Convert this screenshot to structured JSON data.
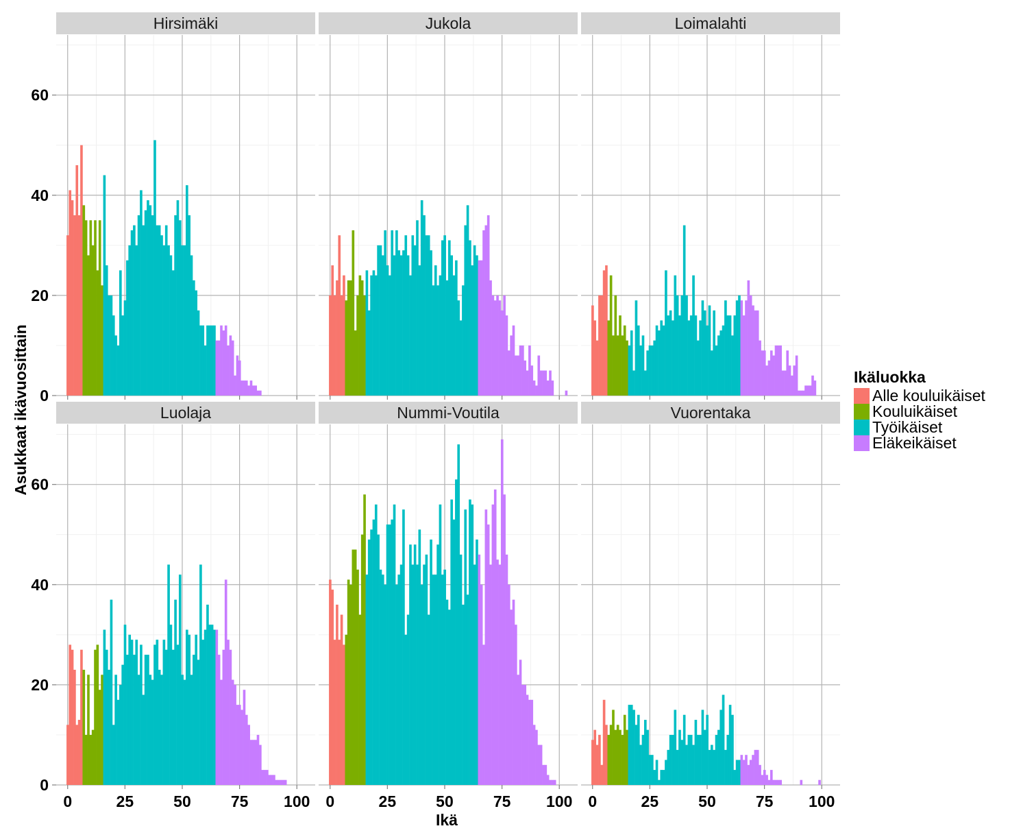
{
  "chart_data": {
    "type": "bar",
    "xlabel": "Ikä",
    "ylabel": "Asukkaat ikävuosittain",
    "xlim": [
      -5,
      108
    ],
    "ylim": [
      0,
      72
    ],
    "x_ticks": [
      0,
      25,
      50,
      75,
      100
    ],
    "y_ticks": [
      0,
      20,
      40,
      60
    ],
    "grid": true,
    "legend": {
      "title": "Ikäluokka",
      "position": "right",
      "entries": [
        {
          "label": "Alle kouluikäiset",
          "color": "#F8766D"
        },
        {
          "label": "Kouluikäiset",
          "color": "#7CAE00"
        },
        {
          "label": "Työikäiset",
          "color": "#00BFC4"
        },
        {
          "label": "Eläkeikäiset",
          "color": "#C77CFF"
        }
      ]
    },
    "class_bounds": [
      {
        "label": "Alle kouluikäiset",
        "from_age": 0,
        "to_age": 6
      },
      {
        "label": "Kouluikäiset",
        "from_age": 7,
        "to_age": 15
      },
      {
        "label": "Työikäiset",
        "from_age": 16,
        "to_age": 64
      },
      {
        "label": "Eläkeikäiset",
        "from_age": 65,
        "to_age": 103
      }
    ],
    "ages": [
      0,
      1,
      2,
      3,
      4,
      5,
      6,
      7,
      8,
      9,
      10,
      11,
      12,
      13,
      14,
      15,
      16,
      17,
      18,
      19,
      20,
      21,
      22,
      23,
      24,
      25,
      26,
      27,
      28,
      29,
      30,
      31,
      32,
      33,
      34,
      35,
      36,
      37,
      38,
      39,
      40,
      41,
      42,
      43,
      44,
      45,
      46,
      47,
      48,
      49,
      50,
      51,
      52,
      53,
      54,
      55,
      56,
      57,
      58,
      59,
      60,
      61,
      62,
      63,
      64,
      65,
      66,
      67,
      68,
      69,
      70,
      71,
      72,
      73,
      74,
      75,
      76,
      77,
      78,
      79,
      80,
      81,
      82,
      83,
      84,
      85,
      86,
      87,
      88,
      89,
      90,
      91,
      92,
      93,
      94,
      95,
      96,
      97,
      98,
      99,
      100,
      101,
      102,
      103
    ],
    "panels": [
      {
        "name": "Hirsimäki",
        "values": [
          32,
          41,
          39,
          36,
          46,
          36,
          50,
          38,
          35,
          28,
          35,
          30,
          35,
          25,
          35,
          22,
          44,
          26,
          20,
          20,
          16,
          12,
          10,
          25,
          16,
          19,
          27,
          30,
          33,
          34,
          30,
          36,
          41,
          34,
          37,
          39,
          38,
          36,
          51,
          34,
          34,
          32,
          30,
          34,
          30,
          28,
          25,
          36,
          39,
          35,
          30,
          30,
          42,
          36,
          28,
          23,
          21,
          17,
          14,
          14,
          10,
          14,
          14,
          14,
          14,
          11,
          11,
          14,
          13,
          14,
          10,
          12,
          11,
          4,
          8,
          7,
          3,
          3,
          3,
          2,
          3,
          2,
          2,
          1,
          1,
          0,
          0,
          0,
          0,
          0,
          0,
          0,
          0,
          0,
          0,
          0,
          0,
          0,
          0,
          0,
          0,
          0,
          0,
          0
        ]
      },
      {
        "name": "Jukola",
        "values": [
          20,
          26,
          20,
          23,
          32,
          20,
          24,
          19,
          23,
          23,
          33,
          13,
          20,
          24,
          23,
          20,
          25,
          17,
          24,
          25,
          24,
          30,
          30,
          28,
          33,
          26,
          24,
          33,
          28,
          33,
          29,
          28,
          29,
          32,
          28,
          24,
          32,
          30,
          35,
          26,
          39,
          36,
          32,
          32,
          29,
          22,
          26,
          22,
          24,
          31,
          32,
          23,
          31,
          28,
          24,
          27,
          19,
          15,
          22,
          34,
          38,
          31,
          26,
          30,
          28,
          27,
          27,
          33,
          34,
          36,
          23,
          20,
          19,
          20,
          19,
          17,
          20,
          16,
          9,
          12,
          14,
          8,
          8,
          10,
          10,
          7,
          5,
          10,
          6,
          3,
          2,
          8,
          5,
          5,
          5,
          3,
          5,
          3,
          0,
          0,
          0,
          0,
          0,
          1
        ]
      },
      {
        "name": "Loimalahti",
        "values": [
          18,
          15,
          11,
          20,
          20,
          25,
          26,
          15,
          24,
          12,
          20,
          12,
          16,
          12,
          14,
          11,
          10,
          13,
          5,
          19,
          14,
          10,
          12,
          5,
          9,
          10,
          10,
          11,
          14,
          13,
          15,
          14,
          25,
          16,
          17,
          15,
          24,
          20,
          16,
          20,
          34,
          20,
          15,
          16,
          24,
          16,
          11,
          15,
          19,
          17,
          14,
          18,
          9,
          17,
          10,
          12,
          13,
          14,
          19,
          16,
          16,
          12,
          16,
          19,
          20,
          19,
          16,
          19,
          23,
          20,
          18,
          17,
          17,
          11,
          9,
          9,
          6,
          7,
          9,
          8,
          10,
          10,
          10,
          5,
          5,
          9,
          6,
          4,
          6,
          8,
          1,
          1,
          1,
          2,
          2,
          2,
          4,
          3,
          0,
          0,
          0,
          0,
          0,
          0
        ]
      },
      {
        "name": "Luolaja",
        "values": [
          12,
          28,
          27,
          23,
          12,
          13,
          27,
          23,
          10,
          22,
          10,
          11,
          27,
          28,
          19,
          22,
          31,
          27,
          23,
          37,
          12,
          22,
          17,
          20,
          24,
          32,
          26,
          30,
          29,
          26,
          29,
          22,
          28,
          18,
          26,
          26,
          22,
          21,
          28,
          29,
          23,
          22,
          29,
          27,
          44,
          32,
          27,
          37,
          28,
          42,
          22,
          21,
          31,
          30,
          22,
          26,
          30,
          25,
          44,
          29,
          31,
          36,
          32,
          32,
          31,
          31,
          26,
          21,
          27,
          41,
          29,
          27,
          21,
          20,
          16,
          16,
          15,
          19,
          14,
          12,
          9,
          9,
          9,
          10,
          8,
          3,
          3,
          3,
          2,
          2,
          2,
          1,
          1,
          1,
          1,
          1,
          0,
          0,
          0,
          0,
          0,
          0,
          0,
          0
        ]
      },
      {
        "name": "Nummi-Voutila",
        "values": [
          41,
          39,
          29,
          36,
          29,
          34,
          28,
          30,
          41,
          40,
          47,
          47,
          43,
          34,
          50,
          58,
          42,
          49,
          51,
          53,
          56,
          50,
          43,
          42,
          40,
          52,
          52,
          53,
          56,
          40,
          42,
          44,
          55,
          30,
          34,
          48,
          44,
          48,
          44,
          51,
          40,
          44,
          46,
          34,
          49,
          42,
          42,
          48,
          56,
          42,
          43,
          37,
          35,
          57,
          53,
          61,
          68,
          46,
          36,
          55,
          38,
          57,
          56,
          44,
          49,
          46,
          40,
          28,
          55,
          52,
          44,
          56,
          59,
          45,
          44,
          69,
          58,
          46,
          40,
          35,
          37,
          32,
          22,
          25,
          20,
          20,
          18,
          17,
          17,
          12,
          11,
          8,
          8,
          4,
          4,
          2,
          1,
          1,
          1,
          0,
          0,
          0,
          0,
          0
        ]
      },
      {
        "name": "Vuorentaka",
        "values": [
          9,
          11,
          8,
          10,
          4,
          17,
          12,
          10,
          12,
          15,
          11,
          12,
          11,
          10,
          14,
          11,
          16,
          16,
          15,
          12,
          14,
          8,
          10,
          13,
          11,
          6,
          6,
          3,
          5,
          1,
          3,
          3,
          5,
          7,
          10,
          10,
          15,
          7,
          11,
          9,
          14,
          8,
          10,
          10,
          8,
          13,
          10,
          10,
          15,
          11,
          14,
          7,
          8,
          7,
          10,
          11,
          15,
          18,
          7,
          10,
          16,
          14,
          3,
          5,
          5,
          6,
          5,
          6,
          4,
          5,
          6,
          7,
          7,
          4,
          2,
          3,
          2,
          1,
          3,
          1,
          1,
          1,
          1,
          0,
          0,
          0,
          0,
          0,
          0,
          0,
          0,
          1,
          0,
          0,
          0,
          0,
          0,
          0,
          0,
          1,
          0,
          0,
          0,
          0
        ]
      }
    ]
  }
}
